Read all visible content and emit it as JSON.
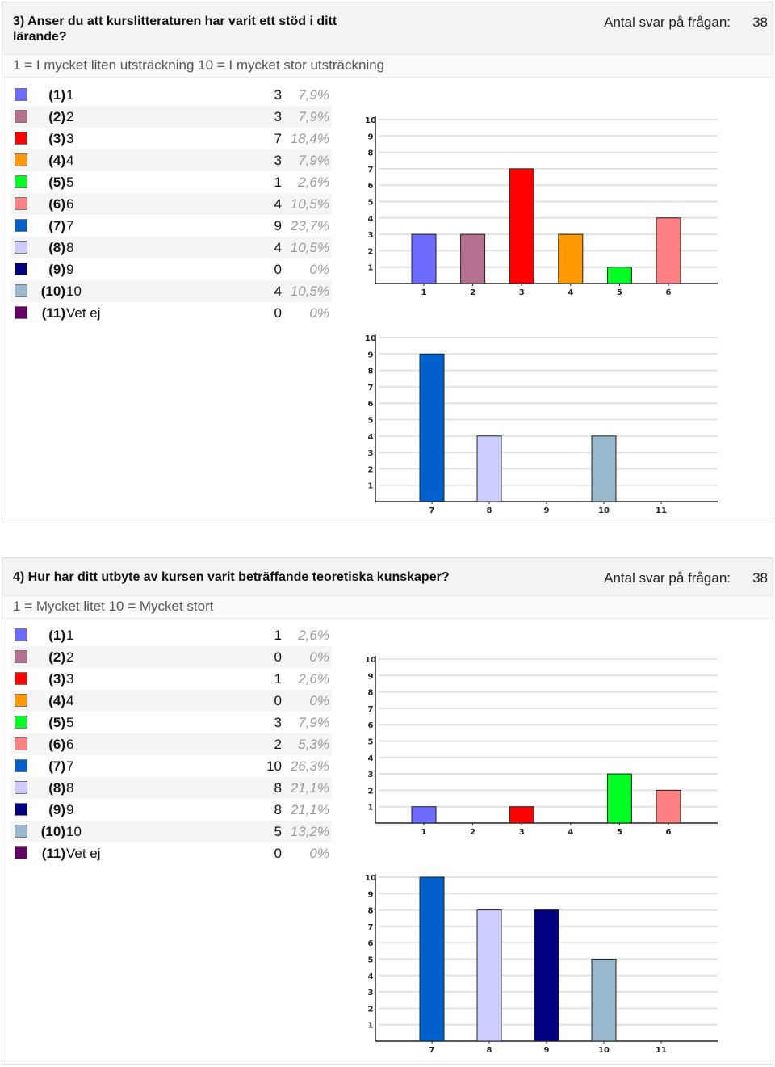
{
  "questions": [
    {
      "title": "3) Anser du att kurslitteraturen har varit ett stöd i ditt lärande?",
      "count_label": "Antal svar på frågan:",
      "count": "38",
      "scale": "1 = I mycket liten utsträckning 10 = I mycket stor utsträckning",
      "legend": [
        {
          "num": "(1)",
          "text": "1",
          "count": "3",
          "pct": "7,9%"
        },
        {
          "num": "(2)",
          "text": "2",
          "count": "3",
          "pct": "7,9%"
        },
        {
          "num": "(3)",
          "text": "3",
          "count": "7",
          "pct": "18,4%"
        },
        {
          "num": "(4)",
          "text": "4",
          "count": "3",
          "pct": "7,9%"
        },
        {
          "num": "(5)",
          "text": "5",
          "count": "1",
          "pct": "2,6%"
        },
        {
          "num": "(6)",
          "text": "6",
          "count": "4",
          "pct": "10,5%"
        },
        {
          "num": "(7)",
          "text": "7",
          "count": "9",
          "pct": "23,7%"
        },
        {
          "num": "(8)",
          "text": "8",
          "count": "4",
          "pct": "10,5%"
        },
        {
          "num": "(9)",
          "text": "9",
          "count": "0",
          "pct": "0%"
        },
        {
          "num": "(10)",
          "text": "10",
          "count": "4",
          "pct": "10,5%"
        },
        {
          "num": "(11)",
          "text": "Vet ej",
          "count": "0",
          "pct": "0%"
        }
      ]
    },
    {
      "title": "4) Hur har ditt utbyte av kursen varit beträffande teoretiska kunskaper?",
      "count_label": "Antal svar på frågan:",
      "count": "38",
      "scale": "1 = Mycket litet 10 = Mycket stort",
      "legend": [
        {
          "num": "(1)",
          "text": "1",
          "count": "1",
          "pct": "2,6%"
        },
        {
          "num": "(2)",
          "text": "2",
          "count": "0",
          "pct": "0%"
        },
        {
          "num": "(3)",
          "text": "3",
          "count": "1",
          "pct": "2,6%"
        },
        {
          "num": "(4)",
          "text": "4",
          "count": "0",
          "pct": "0%"
        },
        {
          "num": "(5)",
          "text": "5",
          "count": "3",
          "pct": "7,9%"
        },
        {
          "num": "(6)",
          "text": "6",
          "count": "2",
          "pct": "5,3%"
        },
        {
          "num": "(7)",
          "text": "7",
          "count": "10",
          "pct": "26,3%"
        },
        {
          "num": "(8)",
          "text": "8",
          "count": "8",
          "pct": "21,1%"
        },
        {
          "num": "(9)",
          "text": "9",
          "count": "8",
          "pct": "21,1%"
        },
        {
          "num": "(10)",
          "text": "10",
          "count": "5",
          "pct": "13,2%"
        },
        {
          "num": "(11)",
          "text": "Vet ej",
          "count": "0",
          "pct": "0%"
        }
      ]
    }
  ],
  "colors": [
    "#6b6bff",
    "#b57090",
    "#ff0000",
    "#ff9900",
    "#00ff22",
    "#ff8080",
    "#0060cc",
    "#ccccff",
    "#000080",
    "#99b8cc",
    "#660066"
  ],
  "chart_data": [
    {
      "type": "bar",
      "title": "3) Anser du att kurslitteraturen har varit ett stöd i ditt lärande? (1–6)",
      "categories": [
        "1",
        "2",
        "3",
        "4",
        "5",
        "6"
      ],
      "values": [
        3,
        3,
        7,
        3,
        1,
        4
      ],
      "yticks": [
        "1",
        "2",
        "3",
        "4",
        "5",
        "6",
        "7",
        "8",
        "9",
        "10"
      ],
      "ylim": [
        0,
        10
      ],
      "grid": true
    },
    {
      "type": "bar",
      "title": "3) Anser du att kurslitteraturen har varit ett stöd i ditt lärande? (7–11)",
      "categories": [
        "7",
        "8",
        "9",
        "10",
        "11"
      ],
      "values": [
        9,
        4,
        0,
        4,
        0
      ],
      "yticks": [
        "1",
        "2",
        "3",
        "4",
        "5",
        "6",
        "7",
        "8",
        "9",
        "10"
      ],
      "ylim": [
        0,
        10
      ],
      "grid": true
    },
    {
      "type": "bar",
      "title": "4) Hur har ditt utbyte av kursen varit beträffande teoretiska kunskaper? (1–6)",
      "categories": [
        "1",
        "2",
        "3",
        "4",
        "5",
        "6"
      ],
      "values": [
        1,
        0,
        1,
        0,
        3,
        2
      ],
      "yticks": [
        "1",
        "2",
        "3",
        "4",
        "5",
        "6",
        "7",
        "8",
        "9",
        "10"
      ],
      "ylim": [
        0,
        10
      ],
      "grid": true
    },
    {
      "type": "bar",
      "title": "4) Hur har ditt utbyte av kursen varit beträffande teoretiska kunskaper? (7–11)",
      "categories": [
        "7",
        "8",
        "9",
        "10",
        "11"
      ],
      "values": [
        10,
        8,
        8,
        5,
        0
      ],
      "yticks": [
        "1",
        "2",
        "3",
        "4",
        "5",
        "6",
        "7",
        "8",
        "9",
        "10"
      ],
      "ylim": [
        0,
        10
      ],
      "grid": true
    }
  ]
}
